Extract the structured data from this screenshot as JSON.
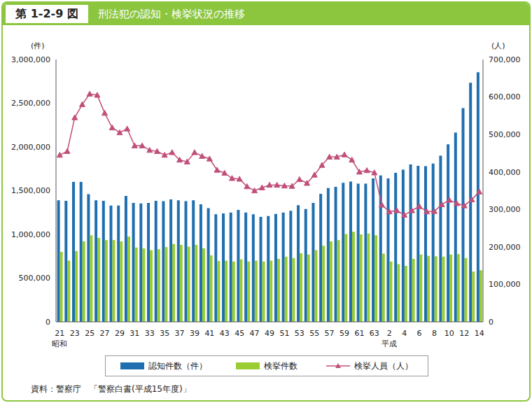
{
  "chart_data": {
    "type": "bar_line",
    "figure_label": "第 1-2-9 図",
    "title": "刑法犯の認知・検挙状況の推移",
    "y_label": "(件)",
    "y2_label": "(人)",
    "source": "資料：警察庁　「警察白書(平成15年度)」",
    "categories": [
      "21",
      null,
      "23",
      null,
      "25",
      null,
      "27",
      null,
      "29",
      null,
      "31",
      null,
      "33",
      null,
      "35",
      null,
      "37",
      null,
      "39",
      null,
      "41",
      null,
      "43",
      null,
      "45",
      null,
      "47",
      null,
      "49",
      null,
      "51",
      null,
      "53",
      null,
      "55",
      null,
      "57",
      null,
      "59",
      null,
      "61",
      null,
      "63",
      null,
      "2",
      null,
      "4",
      null,
      "6",
      null,
      "8",
      null,
      "10",
      null,
      "12",
      null,
      "14"
    ],
    "annotations": [
      {
        "category_index": 0,
        "text": "昭和"
      },
      {
        "category_index": 44,
        "text": "平成"
      }
    ],
    "series": [
      {
        "name": "認知件数（件）",
        "type": "bar",
        "color": "#1f6fb0",
        "values": [
          1390000,
          1385000,
          1600000,
          1600000,
          1460000,
          1390000,
          1385000,
          1330000,
          1330000,
          1440000,
          1360000,
          1355000,
          1360000,
          1385000,
          1380000,
          1400000,
          1390000,
          1380000,
          1390000,
          1345000,
          1300000,
          1230000,
          1240000,
          1250000,
          1280000,
          1250000,
          1230000,
          1200000,
          1210000,
          1235000,
          1250000,
          1270000,
          1335000,
          1290000,
          1360000,
          1465000,
          1530000,
          1545000,
          1590000,
          1605000,
          1580000,
          1580000,
          1640000,
          1675000,
          1640000,
          1705000,
          1740000,
          1800000,
          1785000,
          1780000,
          1810000,
          1900000,
          2030000,
          2165000,
          2445000,
          2735000,
          2855000
        ]
      },
      {
        "name": "検挙件数",
        "type": "bar",
        "color": "#9acd32",
        "values": [
          800000,
          700000,
          810000,
          920000,
          990000,
          960000,
          935000,
          935000,
          920000,
          975000,
          850000,
          840000,
          820000,
          830000,
          855000,
          890000,
          880000,
          860000,
          880000,
          840000,
          760000,
          695000,
          700000,
          690000,
          715000,
          690000,
          700000,
          690000,
          700000,
          720000,
          745000,
          730000,
          785000,
          770000,
          820000,
          870000,
          920000,
          935000,
          1005000,
          1030000,
          1000000,
          1010000,
          990000,
          780000,
          690000,
          660000,
          640000,
          720000,
          770000,
          755000,
          750000,
          745000,
          770000,
          775000,
          730000,
          575000,
          590000
        ]
      },
      {
        "name": "検挙人員（人）",
        "type": "line",
        "axis": "y2",
        "color": "#c0507a",
        "marker": "triangle",
        "values": [
          445000,
          455000,
          545000,
          580000,
          608000,
          605000,
          557000,
          518000,
          505000,
          515000,
          470000,
          470000,
          458000,
          455000,
          445000,
          452000,
          432000,
          427000,
          452000,
          442000,
          435000,
          405000,
          397000,
          383000,
          381000,
          361000,
          350000,
          358000,
          365000,
          365000,
          363000,
          362000,
          380000,
          370000,
          392000,
          418000,
          440000,
          440000,
          446000,
          432000,
          400000,
          404000,
          398000,
          312000,
          294000,
          297000,
          285000,
          297000,
          308000,
          294000,
          295000,
          313000,
          325000,
          316000,
          310000,
          326000,
          347000
        ]
      }
    ],
    "ylim": [
      0,
      3000000
    ],
    "yticks": [
      0,
      {
        "value": 500000,
        "label": "500,000"
      },
      {
        "value": 1000000,
        "label": "1,000,000"
      },
      {
        "value": 1500000,
        "label": "1,500,000"
      },
      {
        "value": 2000000,
        "label": "2,000,000"
      },
      {
        "value": 2500000,
        "label": "2,500,000"
      },
      {
        "value": 3000000,
        "label": "3,000,000"
      }
    ],
    "y2lim": [
      0,
      700000
    ],
    "y2ticks": [
      0,
      {
        "value": 100000,
        "label": "100,000"
      },
      {
        "value": 200000,
        "label": "200,000"
      },
      {
        "value": 300000,
        "label": "300,000"
      },
      {
        "value": 400000,
        "label": "400,000"
      },
      {
        "value": 500000,
        "label": "500,000"
      },
      {
        "value": 600000,
        "label": "600,000"
      },
      {
        "value": 700000,
        "label": "700,000"
      }
    ],
    "grid": false,
    "legend": "bottom"
  }
}
